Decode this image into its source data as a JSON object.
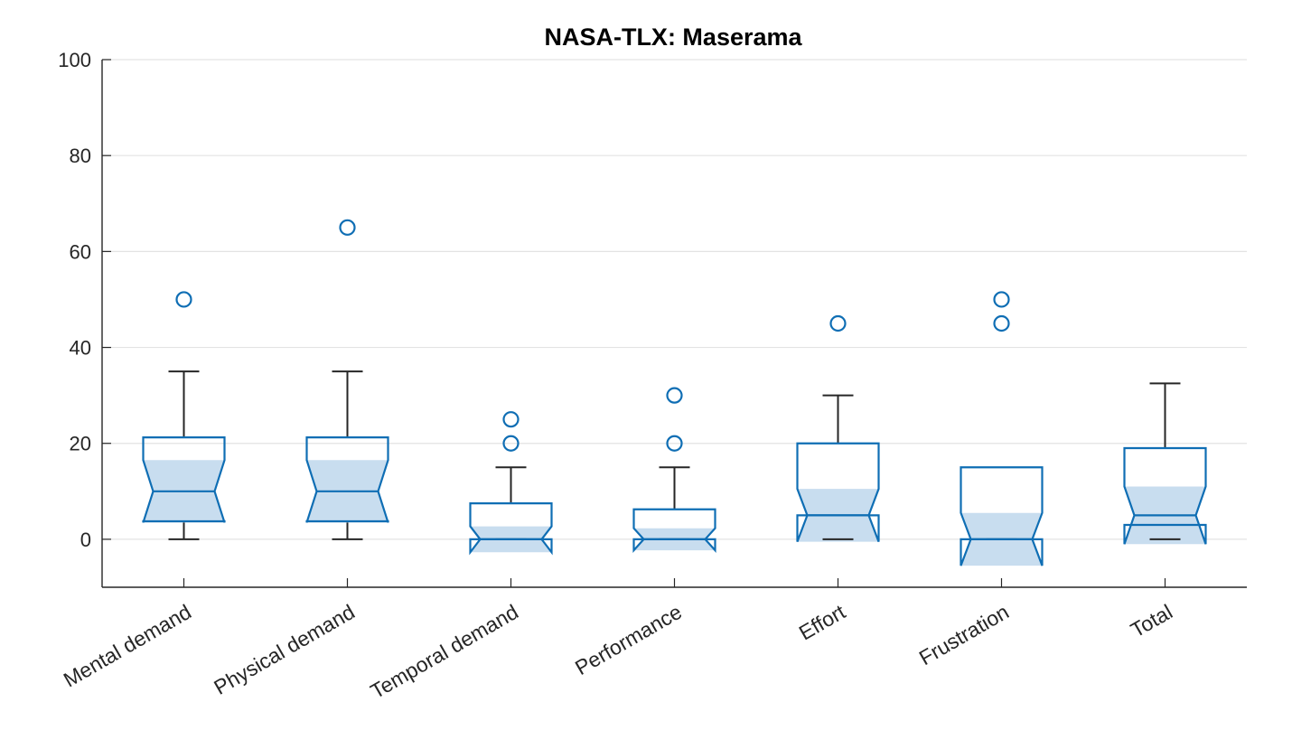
{
  "chart_data": {
    "type": "boxplot",
    "title": "NASA-TLX: Maserama",
    "xlabel": "",
    "ylabel": "",
    "ylim": [
      -10,
      100
    ],
    "yticks": [
      0,
      20,
      40,
      60,
      80,
      100
    ],
    "grid": "horizontal",
    "notched": true,
    "colors": {
      "box": "#0f6eb4",
      "box_fill": "#c8ddef",
      "whisker": "#262626",
      "outlier": "#0f6eb4",
      "grid": "#e3e3e3",
      "axis": "#262626"
    },
    "categories": [
      "Mental demand",
      "Physical demand",
      "Temporal demand",
      "Performance",
      "Effort",
      "Frustration",
      "Total"
    ],
    "boxes": [
      {
        "category": "Mental demand",
        "whisker_low": 0,
        "q1": 3.75,
        "median": 10,
        "q3": 21.25,
        "whisker_high": 35,
        "notch_low": 3.5,
        "notch_high": 16.5,
        "outliers": [
          50
        ]
      },
      {
        "category": "Physical demand",
        "whisker_low": 0,
        "q1": 3.75,
        "median": 10,
        "q3": 21.25,
        "whisker_high": 35,
        "notch_low": 3.5,
        "notch_high": 16.5,
        "outliers": [
          65
        ]
      },
      {
        "category": "Temporal demand",
        "whisker_low": 0,
        "q1": 0,
        "median": 0,
        "q3": 7.5,
        "whisker_high": 15,
        "notch_low": -2.7,
        "notch_high": 2.7,
        "outliers": [
          20,
          25
        ]
      },
      {
        "category": "Performance",
        "whisker_low": 0,
        "q1": 0,
        "median": 0,
        "q3": 6.25,
        "whisker_high": 15,
        "notch_low": -2.3,
        "notch_high": 2.3,
        "outliers": [
          20,
          30
        ]
      },
      {
        "category": "Effort",
        "whisker_low": 0,
        "q1": 5,
        "median": 5,
        "q3": 20,
        "whisker_high": 30,
        "notch_low": -0.5,
        "notch_high": 10.5,
        "outliers": [
          45
        ]
      },
      {
        "category": "Frustration",
        "whisker_low": 0,
        "q1": 0,
        "median": 0,
        "q3": 15,
        "whisker_high": 15,
        "notch_low": -5.5,
        "notch_high": 5.5,
        "outliers": [
          45,
          50
        ]
      },
      {
        "category": "Total",
        "whisker_low": 0,
        "q1": 3,
        "median": 5,
        "q3": 19,
        "whisker_high": 32.5,
        "notch_low": -1,
        "notch_high": 11,
        "outliers": []
      }
    ]
  }
}
